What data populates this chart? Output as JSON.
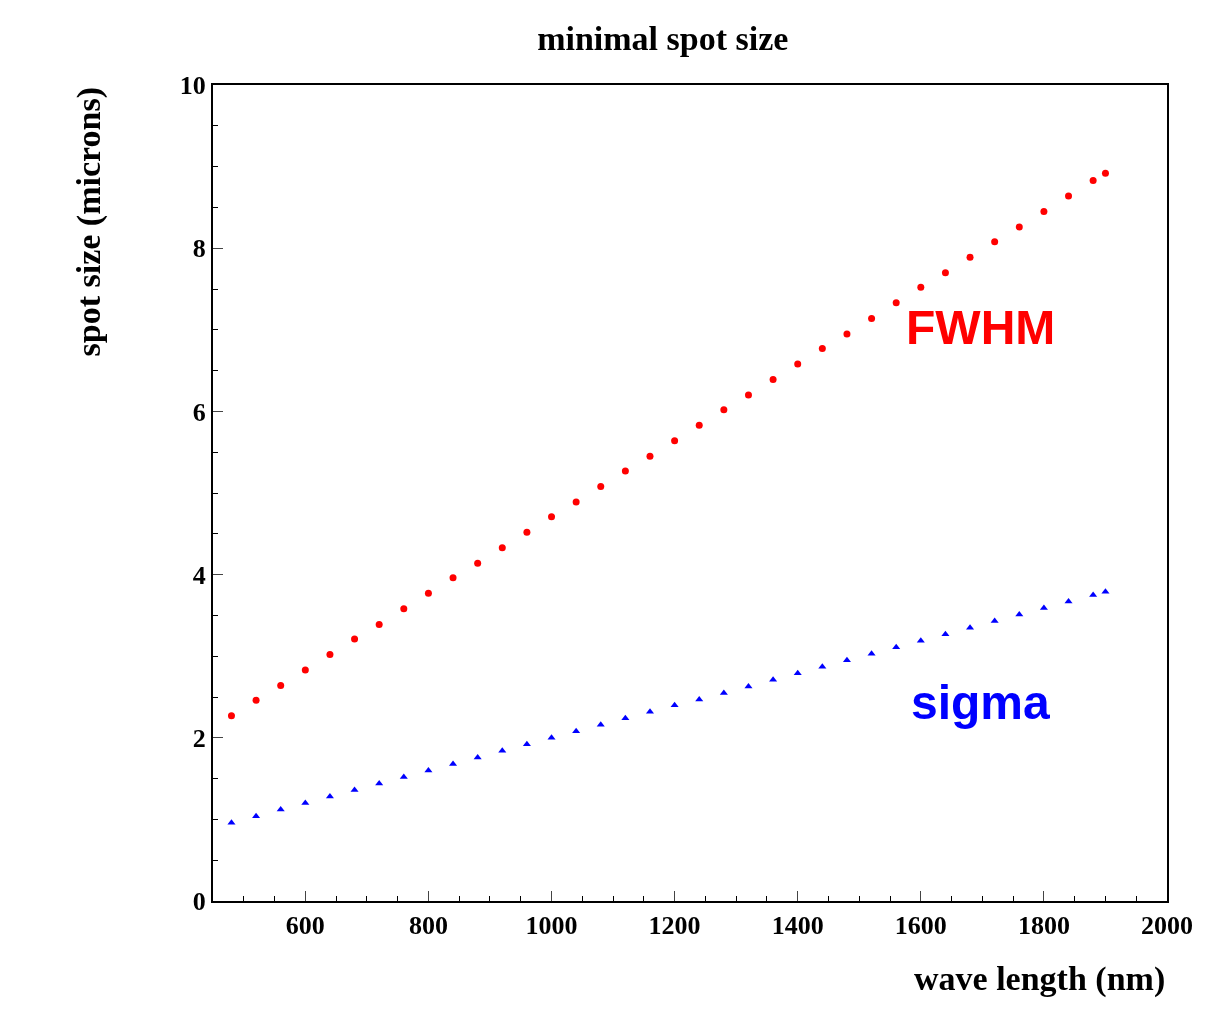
{
  "chart_data": {
    "type": "scatter",
    "title": "minimal spot size",
    "xlabel": "wave length (nm)",
    "ylabel": "spot size (microns)",
    "x": [
      480,
      520,
      560,
      600,
      640,
      680,
      720,
      760,
      800,
      840,
      880,
      920,
      960,
      1000,
      1040,
      1080,
      1120,
      1160,
      1200,
      1240,
      1280,
      1320,
      1360,
      1400,
      1440,
      1480,
      1520,
      1560,
      1600,
      1640,
      1680,
      1720,
      1760,
      1800,
      1840,
      1880,
      1900
    ],
    "series": [
      {
        "name": "FWHM",
        "color": "#ff0000",
        "marker": "circle",
        "values": [
          2.27,
          2.46,
          2.64,
          2.83,
          3.02,
          3.21,
          3.39,
          3.58,
          3.77,
          3.96,
          4.14,
          4.33,
          4.52,
          4.71,
          4.89,
          5.08,
          5.27,
          5.45,
          5.64,
          5.83,
          6.02,
          6.2,
          6.39,
          6.58,
          6.77,
          6.95,
          7.14,
          7.33,
          7.52,
          7.7,
          7.89,
          8.08,
          8.26,
          8.45,
          8.64,
          8.83,
          8.92
        ]
      },
      {
        "name": "sigma",
        "color": "#0000ff",
        "marker": "triangle",
        "values": [
          0.96,
          1.04,
          1.12,
          1.2,
          1.28,
          1.36,
          1.44,
          1.52,
          1.6,
          1.68,
          1.76,
          1.84,
          1.92,
          2.0,
          2.08,
          2.16,
          2.24,
          2.32,
          2.4,
          2.47,
          2.55,
          2.63,
          2.71,
          2.79,
          2.87,
          2.95,
          3.03,
          3.11,
          3.19,
          3.27,
          3.35,
          3.43,
          3.51,
          3.59,
          3.67,
          3.75,
          3.79
        ]
      }
    ],
    "xlim": [
      450,
      2000
    ],
    "xticks": [
      600,
      800,
      1000,
      1200,
      1400,
      1600,
      1800,
      2000
    ],
    "ylim": [
      0,
      10
    ],
    "yticks": [
      0,
      2,
      4,
      6,
      8,
      10
    ],
    "legend": false
  }
}
